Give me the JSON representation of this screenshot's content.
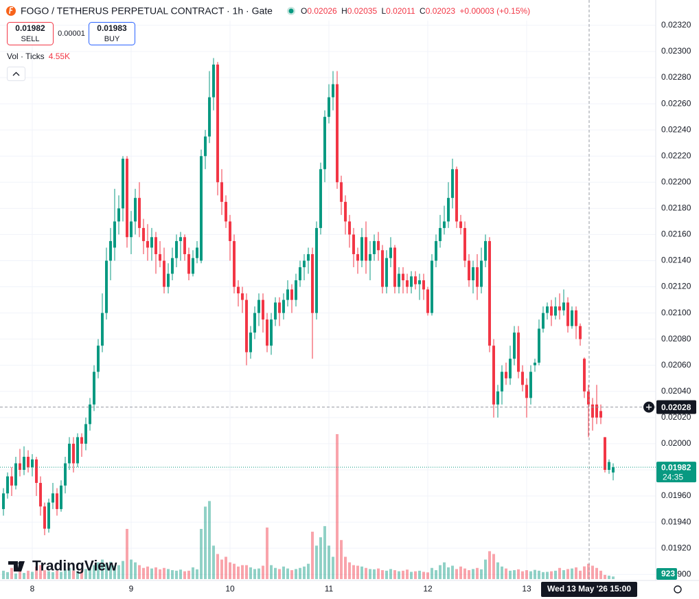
{
  "chart_data": {
    "type": "candlestick",
    "title": "FOGO / TETHERUS PERPETUAL CONTRACT · 1h · Gate",
    "ohlc_legend": {
      "o_label": "O",
      "open": "0.02026",
      "h_label": "H",
      "high": "0.02035",
      "l_label": "L",
      "low": "0.02011",
      "c_label": "C",
      "close": "0.02023",
      "change": "+0.00003 (+0.15%)"
    },
    "trade_buttons": {
      "sell_price": "0.01982",
      "sell": "SELL",
      "spread": "0.00001",
      "buy_price": "0.01983",
      "buy": "BUY"
    },
    "volume_legend": {
      "label": "Vol · Ticks",
      "value": "4.55K"
    },
    "brand": "TradingView",
    "up_color": "#089981",
    "down_color": "#f23645",
    "grid": true,
    "ylim": [
      0.018954,
      0.023394
    ],
    "yticks": [
      {
        "value": 0.019,
        "label": "0.01900"
      },
      {
        "value": 0.0192,
        "label": "0.01920"
      },
      {
        "value": 0.0194,
        "label": "0.01940"
      },
      {
        "value": 0.0196,
        "label": "0.01960"
      },
      {
        "value": 0.0198,
        "label": "0.01980"
      },
      {
        "value": 0.02,
        "label": "0.02000"
      },
      {
        "value": 0.0202,
        "label": "0.02020"
      },
      {
        "value": 0.0204,
        "label": "0.02040"
      },
      {
        "value": 0.0206,
        "label": "0.02060"
      },
      {
        "value": 0.0208,
        "label": "0.02080"
      },
      {
        "value": 0.021,
        "label": "0.02100"
      },
      {
        "value": 0.0212,
        "label": "0.02120"
      },
      {
        "value": 0.0214,
        "label": "0.02140"
      },
      {
        "value": 0.0216,
        "label": "0.02160"
      },
      {
        "value": 0.0218,
        "label": "0.02180"
      },
      {
        "value": 0.022,
        "label": "0.02200"
      },
      {
        "value": 0.0222,
        "label": "0.02220"
      },
      {
        "value": 0.0224,
        "label": "0.02240"
      },
      {
        "value": 0.0226,
        "label": "0.02260"
      },
      {
        "value": 0.0228,
        "label": "0.02280"
      },
      {
        "value": 0.023,
        "label": "0.02300"
      },
      {
        "value": 0.0232,
        "label": "0.02320"
      }
    ],
    "categories": [
      null,
      null,
      null,
      null,
      null,
      null,
      null,
      "8",
      null,
      null,
      null,
      null,
      null,
      null,
      null,
      null,
      null,
      null,
      null,
      null,
      null,
      null,
      null,
      null,
      null,
      null,
      null,
      null,
      null,
      null,
      null,
      "9",
      null,
      null,
      null,
      null,
      null,
      null,
      null,
      null,
      null,
      null,
      null,
      null,
      null,
      null,
      null,
      null,
      null,
      null,
      null,
      null,
      null,
      null,
      null,
      "10",
      null,
      null,
      null,
      null,
      null,
      null,
      null,
      null,
      null,
      null,
      null,
      null,
      null,
      null,
      null,
      null,
      null,
      null,
      null,
      null,
      null,
      null,
      null,
      "11",
      null,
      null,
      null,
      null,
      null,
      null,
      null,
      null,
      null,
      null,
      null,
      null,
      null,
      null,
      null,
      null,
      null,
      null,
      null,
      null,
      null,
      null,
      null,
      "12",
      null,
      null,
      null,
      null,
      null,
      null,
      null,
      null,
      null,
      null,
      null,
      null,
      null,
      null,
      null,
      null,
      null,
      null,
      null,
      null,
      null,
      null,
      null,
      "13",
      null,
      null,
      null,
      null,
      null,
      null,
      null,
      null,
      null,
      null,
      null,
      null,
      null,
      null,
      null,
      null,
      null,
      null,
      null,
      null,
      null
    ],
    "ohlc": [
      [
        0.0195,
        0.01966,
        0.01945,
        0.01962
      ],
      [
        0.01962,
        0.01978,
        0.01958,
        0.01975
      ],
      [
        0.01975,
        0.01982,
        0.0196,
        0.01968
      ],
      [
        0.01968,
        0.0199,
        0.01965,
        0.01985
      ],
      [
        0.01985,
        0.01996,
        0.01975,
        0.0198
      ],
      [
        0.0198,
        0.01998,
        0.01976,
        0.0199
      ],
      [
        0.0199,
        0.01995,
        0.01978,
        0.01982
      ],
      [
        0.01982,
        0.01992,
        0.01975,
        0.01988
      ],
      [
        0.01988,
        0.0199,
        0.0196,
        0.0197
      ],
      [
        0.0197,
        0.01975,
        0.01945,
        0.01952
      ],
      [
        0.01952,
        0.01955,
        0.0193,
        0.01935
      ],
      [
        0.01935,
        0.01958,
        0.01932,
        0.01955
      ],
      [
        0.01955,
        0.0197,
        0.0195,
        0.01962
      ],
      [
        0.01962,
        0.01966,
        0.01945,
        0.0195
      ],
      [
        0.0195,
        0.01972,
        0.01948,
        0.01968
      ],
      [
        0.01968,
        0.0199,
        0.01962,
        0.01985
      ],
      [
        0.01985,
        0.02005,
        0.0198,
        0.02
      ],
      [
        0.02,
        0.02005,
        0.01978,
        0.01985
      ],
      [
        0.01985,
        0.02008,
        0.01982,
        0.02005
      ],
      [
        0.02005,
        0.02008,
        0.0199,
        0.02
      ],
      [
        0.02,
        0.0202,
        0.01995,
        0.02015
      ],
      [
        0.02015,
        0.02035,
        0.0201,
        0.0203
      ],
      [
        0.0203,
        0.0206,
        0.02025,
        0.02055
      ],
      [
        0.02055,
        0.0208,
        0.0205,
        0.02075
      ],
      [
        0.02075,
        0.02115,
        0.0207,
        0.021
      ],
      [
        0.021,
        0.0215,
        0.02095,
        0.0214
      ],
      [
        0.0214,
        0.02165,
        0.02125,
        0.02155
      ],
      [
        0.0215,
        0.02195,
        0.0214,
        0.0217
      ],
      [
        0.0217,
        0.0219,
        0.0216,
        0.0218
      ],
      [
        0.0218,
        0.0222,
        0.0217,
        0.02218
      ],
      [
        0.02218,
        0.0222,
        0.0215,
        0.02158
      ],
      [
        0.02158,
        0.02178,
        0.02145,
        0.0217
      ],
      [
        0.0217,
        0.02195,
        0.0216,
        0.02188
      ],
      [
        0.02188,
        0.022,
        0.02158,
        0.02165
      ],
      [
        0.02165,
        0.02172,
        0.02145,
        0.02155
      ],
      [
        0.02155,
        0.02168,
        0.0214,
        0.0215
      ],
      [
        0.0215,
        0.02165,
        0.0214,
        0.02158
      ],
      [
        0.02158,
        0.02162,
        0.0213,
        0.02145
      ],
      [
        0.02145,
        0.02155,
        0.02135,
        0.0214
      ],
      [
        0.0214,
        0.0215,
        0.02115,
        0.0212
      ],
      [
        0.0212,
        0.02138,
        0.02115,
        0.0213
      ],
      [
        0.0213,
        0.0215,
        0.02125,
        0.02142
      ],
      [
        0.02142,
        0.0216,
        0.02135,
        0.02155
      ],
      [
        0.02155,
        0.02162,
        0.0214,
        0.02158
      ],
      [
        0.02158,
        0.0216,
        0.0214,
        0.02145
      ],
      [
        0.02145,
        0.0215,
        0.02125,
        0.0213
      ],
      [
        0.0213,
        0.02148,
        0.02128,
        0.02142
      ],
      [
        0.02142,
        0.02155,
        0.02138,
        0.0215
      ],
      [
        0.0214,
        0.02225,
        0.02138,
        0.0222
      ],
      [
        0.0222,
        0.0224,
        0.0221,
        0.02235
      ],
      [
        0.02235,
        0.02285,
        0.0223,
        0.02265
      ],
      [
        0.02265,
        0.02295,
        0.02255,
        0.0229
      ],
      [
        0.0229,
        0.02292,
        0.0219,
        0.022
      ],
      [
        0.022,
        0.0221,
        0.02175,
        0.02185
      ],
      [
        0.02185,
        0.0219,
        0.02165,
        0.0217
      ],
      [
        0.0217,
        0.02175,
        0.0214,
        0.02155
      ],
      [
        0.02155,
        0.0216,
        0.02115,
        0.0212
      ],
      [
        0.0212,
        0.02125,
        0.02105,
        0.02115
      ],
      [
        0.02115,
        0.0212,
        0.021,
        0.0211
      ],
      [
        0.0211,
        0.02115,
        0.0206,
        0.0207
      ],
      [
        0.0207,
        0.0209,
        0.02065,
        0.02085
      ],
      [
        0.02085,
        0.02105,
        0.0208,
        0.021
      ],
      [
        0.021,
        0.02115,
        0.0209,
        0.0211
      ],
      [
        0.0211,
        0.02115,
        0.02085,
        0.02095
      ],
      [
        0.02095,
        0.021,
        0.0207,
        0.02075
      ],
      [
        0.02075,
        0.021,
        0.02068,
        0.02095
      ],
      [
        0.02095,
        0.02112,
        0.0209,
        0.02108
      ],
      [
        0.02108,
        0.02112,
        0.0209,
        0.021
      ],
      [
        0.021,
        0.02115,
        0.02095,
        0.0211
      ],
      [
        0.0211,
        0.02125,
        0.02105,
        0.02118
      ],
      [
        0.02118,
        0.02122,
        0.021,
        0.0211
      ],
      [
        0.0211,
        0.0213,
        0.02105,
        0.02125
      ],
      [
        0.02125,
        0.0214,
        0.0212,
        0.02135
      ],
      [
        0.02135,
        0.02145,
        0.02125,
        0.0214
      ],
      [
        0.0214,
        0.0215,
        0.0213,
        0.02145
      ],
      [
        0.02145,
        0.0215,
        0.02065,
        0.021
      ],
      [
        0.021,
        0.0217,
        0.02095,
        0.02165
      ],
      [
        0.02165,
        0.02215,
        0.0216,
        0.0221
      ],
      [
        0.0221,
        0.02255,
        0.022,
        0.0225
      ],
      [
        0.0225,
        0.02275,
        0.02245,
        0.02265
      ],
      [
        0.02265,
        0.02285,
        0.02255,
        0.02275
      ],
      [
        0.02275,
        0.02285,
        0.02195,
        0.022
      ],
      [
        0.022,
        0.02205,
        0.02175,
        0.02185
      ],
      [
        0.02185,
        0.0219,
        0.0216,
        0.0217
      ],
      [
        0.0217,
        0.02175,
        0.0215,
        0.0216
      ],
      [
        0.0216,
        0.02165,
        0.02135,
        0.02145
      ],
      [
        0.02145,
        0.0215,
        0.0213,
        0.0214
      ],
      [
        0.0214,
        0.02165,
        0.02135,
        0.02158
      ],
      [
        0.02158,
        0.0217,
        0.0213,
        0.0214
      ],
      [
        0.0214,
        0.02155,
        0.02125,
        0.02145
      ],
      [
        0.02145,
        0.0216,
        0.0214,
        0.02155
      ],
      [
        0.02155,
        0.02162,
        0.0214,
        0.02148
      ],
      [
        0.02148,
        0.02152,
        0.02115,
        0.0212
      ],
      [
        0.0212,
        0.02148,
        0.02115,
        0.02142
      ],
      [
        0.02142,
        0.02158,
        0.02135,
        0.0215
      ],
      [
        0.0215,
        0.02152,
        0.02115,
        0.0212
      ],
      [
        0.0212,
        0.02135,
        0.02115,
        0.0213
      ],
      [
        0.0213,
        0.02135,
        0.02115,
        0.02125
      ],
      [
        0.02125,
        0.0213,
        0.02115,
        0.0212
      ],
      [
        0.0212,
        0.02132,
        0.02115,
        0.02128
      ],
      [
        0.02128,
        0.02132,
        0.02118,
        0.02122
      ],
      [
        0.02122,
        0.0213,
        0.0211,
        0.02125
      ],
      [
        0.02125,
        0.0213,
        0.0211,
        0.02118
      ],
      [
        0.02118,
        0.0212,
        0.02098,
        0.021
      ],
      [
        0.021,
        0.02145,
        0.02098,
        0.0214
      ],
      [
        0.0214,
        0.0216,
        0.02135,
        0.02155
      ],
      [
        0.02155,
        0.02175,
        0.0215,
        0.02165
      ],
      [
        0.02165,
        0.02182,
        0.0216,
        0.0217
      ],
      [
        0.0217,
        0.022,
        0.02165,
        0.02188
      ],
      [
        0.02188,
        0.02218,
        0.0218,
        0.0221
      ],
      [
        0.0221,
        0.02212,
        0.02165,
        0.0217
      ],
      [
        0.0217,
        0.02175,
        0.0216,
        0.02165
      ],
      [
        0.02165,
        0.0217,
        0.02135,
        0.0214
      ],
      [
        0.0214,
        0.02145,
        0.0212,
        0.02125
      ],
      [
        0.02125,
        0.0214,
        0.02115,
        0.02135
      ],
      [
        0.02135,
        0.02145,
        0.0211,
        0.0212
      ],
      [
        0.0212,
        0.0215,
        0.02115,
        0.0214
      ],
      [
        0.0214,
        0.0216,
        0.02135,
        0.02155
      ],
      [
        0.02155,
        0.02158,
        0.0207,
        0.02075
      ],
      [
        0.02075,
        0.0208,
        0.0202,
        0.0203
      ],
      [
        0.0203,
        0.02045,
        0.0202,
        0.0204
      ],
      [
        0.0204,
        0.0206,
        0.0203,
        0.02055
      ],
      [
        0.02055,
        0.02062,
        0.02045,
        0.0205
      ],
      [
        0.0205,
        0.02075,
        0.02045,
        0.02065
      ],
      [
        0.02065,
        0.0209,
        0.0206,
        0.02085
      ],
      [
        0.02085,
        0.0209,
        0.0205,
        0.02055
      ],
      [
        0.02055,
        0.0206,
        0.0204,
        0.02045
      ],
      [
        0.02045,
        0.0205,
        0.0202,
        0.02035
      ],
      [
        0.02035,
        0.0206,
        0.0203,
        0.02055
      ],
      [
        0.0206,
        0.02065,
        0.02055,
        0.02062
      ],
      [
        0.02062,
        0.02095,
        0.0206,
        0.02088
      ],
      [
        0.02088,
        0.02105,
        0.02085,
        0.021
      ],
      [
        0.021,
        0.02108,
        0.02095,
        0.02105
      ],
      [
        0.02105,
        0.0211,
        0.0209,
        0.02098
      ],
      [
        0.02098,
        0.02112,
        0.02095,
        0.02105
      ],
      [
        0.02105,
        0.02115,
        0.02095,
        0.02102
      ],
      [
        0.02102,
        0.02118,
        0.02098,
        0.02108
      ],
      [
        0.02108,
        0.02112,
        0.02085,
        0.0209
      ],
      [
        0.0209,
        0.02105,
        0.02088,
        0.02102
      ],
      [
        0.02102,
        0.02105,
        0.0208,
        0.0209
      ],
      [
        0.0209,
        0.02092,
        0.02075,
        0.0208
      ],
      [
        0.02065,
        0.02066,
        0.02035,
        0.0204
      ],
      [
        0.0204,
        0.02045,
        0.02005,
        0.0203
      ],
      [
        0.0203,
        0.02035,
        0.0201,
        0.0202
      ],
      [
        0.0203,
        0.02045,
        0.02015,
        0.0202
      ],
      [
        0.02025,
        0.0203,
        0.02015,
        0.0202
      ],
      [
        0.02005,
        0.02005,
        0.01978,
        0.0198
      ],
      [
        0.0198,
        0.01988,
        0.01977,
        0.01986
      ],
      [
        0.01978,
        0.01985,
        0.01972,
        0.01982
      ]
    ],
    "volume": [
      3000,
      2500,
      4000,
      2000,
      3500,
      2200,
      3000,
      2600,
      4500,
      5000,
      3200,
      2800,
      2500,
      3000,
      2600,
      3500,
      4000,
      3000,
      2800,
      3300,
      3600,
      4200,
      5000,
      6000,
      7000,
      5500,
      6200,
      4800,
      5000,
      6500,
      18000,
      7000,
      6000,
      5000,
      4000,
      4500,
      3800,
      4200,
      3500,
      4000,
      3600,
      3200,
      3000,
      3400,
      2800,
      3000,
      4200,
      3500,
      18000,
      26000,
      28000,
      12000,
      9000,
      7000,
      8000,
      6000,
      5500,
      4500,
      5000,
      5000,
      4200,
      3600,
      3800,
      4800,
      18500,
      5000,
      4000,
      3600,
      4500,
      3800,
      3200,
      3600,
      4000,
      4500,
      5500,
      17000,
      12000,
      15000,
      19000,
      12000,
      8000,
      52000,
      14000,
      8000,
      6000,
      5000,
      4800,
      4500,
      4000,
      3600,
      3500,
      3800,
      3200,
      3000,
      3600,
      3200,
      2800,
      3000,
      3400,
      2600,
      2800,
      3000,
      2600,
      2400,
      4000,
      3200,
      5000,
      6000,
      4200,
      4800,
      3600,
      4500,
      3800,
      3200,
      3600,
      4000,
      3500,
      7000,
      10000,
      9000,
      6000,
      4500,
      3800,
      3000,
      3200,
      3500,
      2800,
      3200,
      2800,
      3300,
      3000,
      2500,
      2600,
      2800,
      3000,
      4000,
      3200,
      3600,
      3800,
      4200,
      3000,
      4550,
      5500,
      4800,
      4000,
      3000,
      1500,
      1200,
      923
    ],
    "volume_label": "923",
    "last_price": {
      "value": 0.01982,
      "label": "0.01982"
    },
    "countdown": "24:35",
    "crosshair": {
      "price": {
        "value": 0.02028,
        "label": "0.02028"
      },
      "time": "Wed 13 May '26 15:00"
    }
  }
}
